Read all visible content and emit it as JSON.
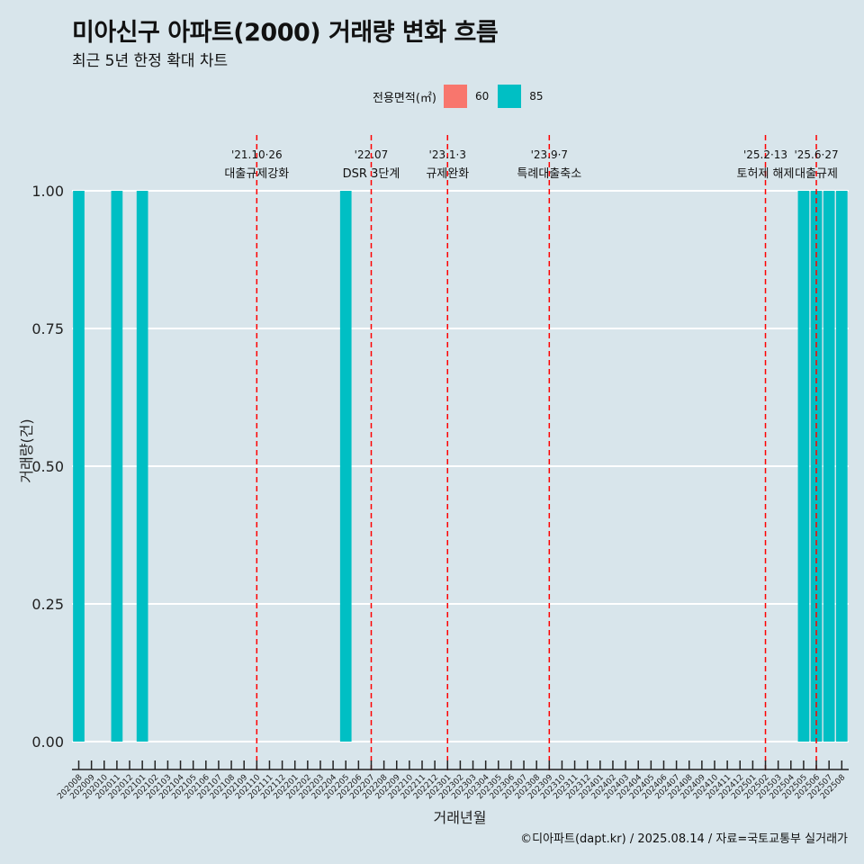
{
  "title": "미아신구 아파트(2000) 거래량 변화 흐름",
  "subtitle": "최근 5년 한정 확대 차트",
  "caption": "©디아파트(dapt.kr) / 2025.08.14 / 자료=국토교통부 실거래가",
  "legend": {
    "title": "전용면적(㎡)",
    "items": [
      {
        "label": "60",
        "color": "#f8766d"
      },
      {
        "label": "85",
        "color": "#00bfc4"
      }
    ]
  },
  "chart_data": {
    "type": "bar",
    "xlabel": "거래년월",
    "ylabel": "거래량(건)",
    "ylim": [
      0,
      1
    ],
    "yticks": [
      "0.00",
      "0.25",
      "0.50",
      "0.75",
      "1.00"
    ],
    "grid": true,
    "legend_position": "top",
    "categories": [
      "202008",
      "202009",
      "202010",
      "202011",
      "202012",
      "202101",
      "202102",
      "202103",
      "202104",
      "202105",
      "202106",
      "202107",
      "202108",
      "202109",
      "202110",
      "202111",
      "202112",
      "202201",
      "202202",
      "202203",
      "202204",
      "202205",
      "202206",
      "202207",
      "202208",
      "202209",
      "202210",
      "202211",
      "202212",
      "202301",
      "202302",
      "202303",
      "202304",
      "202305",
      "202306",
      "202307",
      "202308",
      "202309",
      "202310",
      "202311",
      "202312",
      "202401",
      "202402",
      "202403",
      "202404",
      "202405",
      "202406",
      "202407",
      "202408",
      "202409",
      "202410",
      "202411",
      "202412",
      "202501",
      "202502",
      "202503",
      "202504",
      "202505",
      "202506",
      "202507",
      "202508"
    ],
    "series": [
      {
        "name": "85",
        "color": "#00bfc4",
        "points": [
          {
            "x": "202008",
            "y": 1
          },
          {
            "x": "202011",
            "y": 1
          },
          {
            "x": "202101",
            "y": 1
          },
          {
            "x": "202205",
            "y": 1
          },
          {
            "x": "202505",
            "y": 1
          },
          {
            "x": "202506",
            "y": 1
          },
          {
            "x": "202507",
            "y": 1
          },
          {
            "x": "202508",
            "y": 1
          }
        ]
      }
    ],
    "annotations": [
      {
        "date": "202110",
        "label1": "'21.10·26",
        "label2": "대출규제강화"
      },
      {
        "date": "202207",
        "label1": "'22.07",
        "label2": "DSR 3단계"
      },
      {
        "date": "202301",
        "label1": "'23.1·3",
        "label2": "규제완화"
      },
      {
        "date": "202309",
        "label1": "'23.9·7",
        "label2": "특례대출축소"
      },
      {
        "date": "202502",
        "label1": "'25.2·13",
        "label2": "토허제 해제"
      },
      {
        "date": "202506",
        "label1": "'25.6·27",
        "label2": "대출규제"
      }
    ],
    "annotation_color": "#ff0000"
  }
}
